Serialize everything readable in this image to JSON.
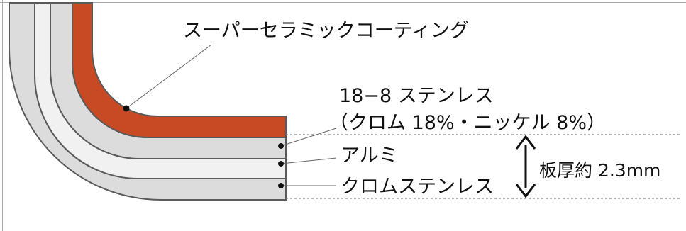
{
  "labels": {
    "coating": "スーパーセラミックコーティング",
    "stainless_line1": "18−8 ステンレス",
    "stainless_line2": "（クロム 18%・ニッケル 8%）",
    "aluminum": "アルミ",
    "chrome_stainless": "クロムステンレス",
    "thickness": "板厚約 2.3mm"
  },
  "colors": {
    "coating": "#c84a25",
    "stainless_layer": "#dcdcdc",
    "aluminum_layer": "#f1f1f1",
    "outline": "#5a5a5a",
    "dashed_line": "#888888",
    "leader_line": "#666666",
    "text": "#111111"
  }
}
